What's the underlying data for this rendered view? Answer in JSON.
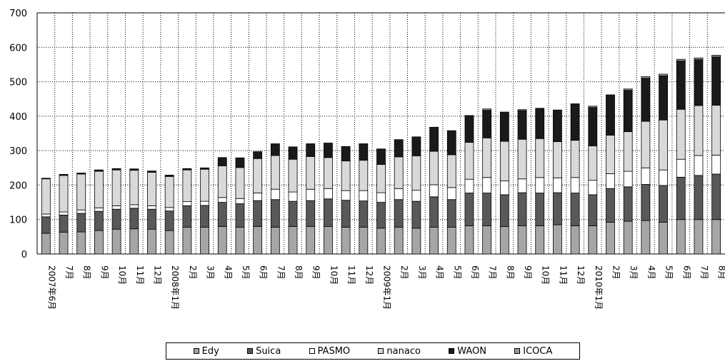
{
  "chart_data": {
    "type": "bar",
    "stacked": true,
    "title": "",
    "xlabel": "",
    "ylabel": "",
    "ylim": [
      0,
      700
    ],
    "yticks": [
      0,
      100,
      200,
      300,
      400,
      500,
      600,
      700
    ],
    "grid": true,
    "legend_position": "bottom",
    "categories": [
      "2007年6月",
      "7月",
      "8月",
      "9月",
      "10月",
      "11月",
      "12月",
      "2008年1月",
      "2月",
      "3月",
      "4月",
      "5月",
      "6月",
      "7月",
      "8月",
      "9月",
      "10月",
      "11月",
      "12月",
      "2009年1月",
      "2月",
      "3月",
      "4月",
      "5月",
      "6月",
      "7月",
      "8月",
      "9月",
      "10月",
      "11月",
      "12月",
      "2010年1月",
      "2月",
      "3月",
      "4月",
      "5月",
      "6月",
      "7月",
      "8月"
    ],
    "series": [
      {
        "name": "Edy",
        "color": "#a6a6a6",
        "values": [
          60,
          63,
          64,
          68,
          72,
          73,
          72,
          68,
          78,
          78,
          80,
          78,
          80,
          78,
          80,
          80,
          80,
          78,
          78,
          75,
          78,
          75,
          78,
          78,
          82,
          82,
          80,
          82,
          82,
          85,
          82,
          82,
          92,
          95,
          97,
          92,
          100,
          100,
          100
        ]
      },
      {
        "name": "Suica",
        "color": "#595959",
        "values": [
          48,
          50,
          54,
          56,
          58,
          60,
          58,
          57,
          62,
          63,
          70,
          68,
          75,
          80,
          73,
          75,
          80,
          78,
          76,
          75,
          80,
          78,
          88,
          80,
          95,
          95,
          92,
          96,
          95,
          93,
          95,
          90,
          98,
          100,
          105,
          107,
          123,
          128,
          132
        ]
      },
      {
        "name": "PASMO",
        "color": "#ffffff",
        "values": [
          8,
          9,
          10,
          10,
          10,
          10,
          10,
          10,
          12,
          12,
          14,
          15,
          22,
          30,
          27,
          33,
          30,
          28,
          30,
          28,
          32,
          32,
          35,
          35,
          40,
          45,
          40,
          40,
          45,
          43,
          45,
          42,
          43,
          45,
          48,
          45,
          52,
          58,
          55
        ]
      },
      {
        "name": "nanaco",
        "color": "#d9d9d9",
        "values": [
          102,
          106,
          104,
          106,
          104,
          100,
          97,
          90,
          92,
          93,
          92,
          90,
          100,
          98,
          95,
          95,
          90,
          86,
          88,
          82,
          92,
          100,
          97,
          95,
          107,
          115,
          115,
          115,
          113,
          105,
          108,
          100,
          112,
          115,
          135,
          145,
          145,
          145,
          145
        ]
      },
      {
        "name": "WAON",
        "color": "#1a1a1a",
        "values": [
          2,
          3,
          3,
          4,
          4,
          4,
          4,
          4,
          4,
          4,
          24,
          28,
          20,
          34,
          36,
          37,
          42,
          42,
          48,
          45,
          50,
          55,
          70,
          70,
          78,
          80,
          85,
          83,
          88,
          92,
          106,
          111,
          117,
          120,
          125,
          128,
          140,
          133,
          140
        ]
      },
      {
        "name": "ICOCA",
        "color": "#999999",
        "values": [
          0,
          0,
          0,
          0,
          0,
          0,
          0,
          0,
          0,
          0,
          0,
          0,
          0,
          0,
          0,
          0,
          0,
          0,
          0,
          0,
          0,
          0,
          0,
          0,
          0,
          4,
          0,
          3,
          0,
          0,
          0,
          4,
          0,
          4,
          5,
          5,
          5,
          5,
          5
        ]
      }
    ]
  }
}
